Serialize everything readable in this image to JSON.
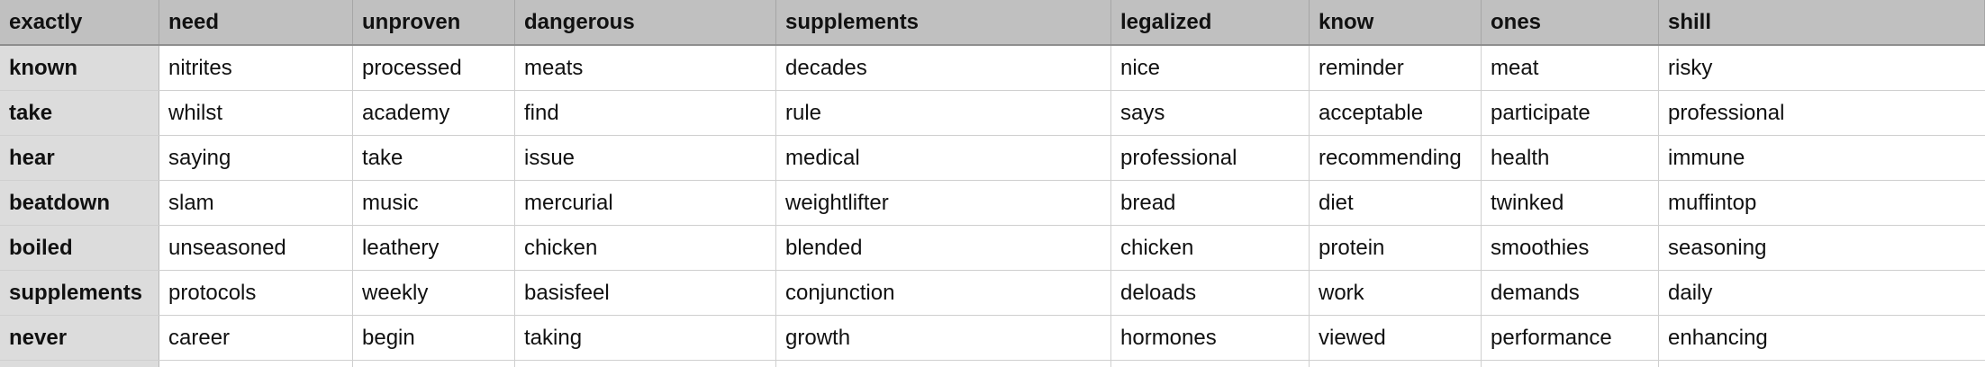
{
  "headers": [
    "exactly",
    "need",
    "unproven",
    "dangerous",
    "supplements",
    "legalized",
    "know",
    "ones",
    "shill"
  ],
  "rows": [
    [
      "known",
      "nitrites",
      "processed",
      "meats",
      "decades",
      "nice",
      "reminder",
      "meat",
      "risky"
    ],
    [
      "take",
      "whilst",
      "academy",
      "find",
      "rule",
      "says",
      "acceptable",
      "participate",
      "professional"
    ],
    [
      "hear",
      "saying",
      "take",
      "issue",
      "medical",
      "professional",
      "recommending",
      "health",
      "immune"
    ],
    [
      "beatdown",
      "slam",
      "music",
      "mercurial",
      "weightlifter",
      "bread",
      "diet",
      "twinked",
      "muffintop"
    ],
    [
      "boiled",
      "unseasoned",
      "leathery",
      "chicken",
      "blended",
      "chicken",
      "protein",
      "smoothies",
      "seasoning"
    ],
    [
      "supplements",
      "protocols",
      "weekly",
      "basisfeel",
      "conjunction",
      "deloads",
      "work",
      "demands",
      "daily"
    ],
    [
      "never",
      "career",
      "begin",
      "taking",
      "growth",
      "hormones",
      "viewed",
      "performance",
      "enhancing"
    ]
  ]
}
